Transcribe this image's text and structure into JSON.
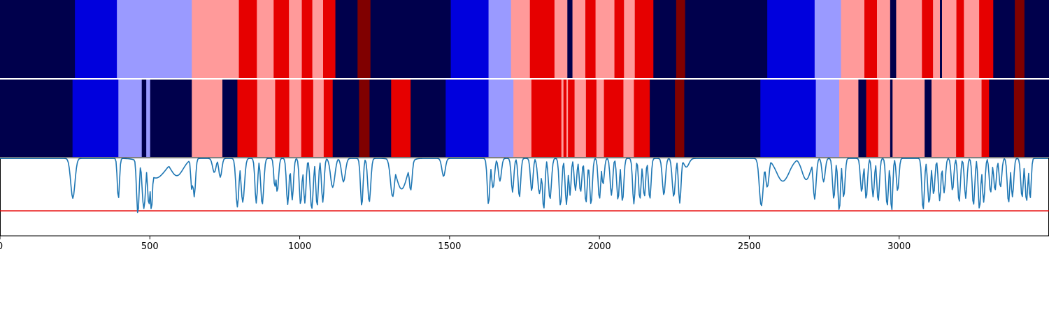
{
  "chart_data": {
    "type": "heatmap",
    "title": "",
    "xlabel": "",
    "ylabel": "",
    "xlim": [
      0,
      3500
    ],
    "xticks": [
      0,
      500,
      1000,
      1500,
      2000,
      2500,
      3000
    ],
    "grid": false,
    "colors": {
      "navy": "#00004c",
      "blue": "#0000dd",
      "lightblue": "#9a9aff",
      "pink": "#ff9a9a",
      "red": "#e60000",
      "darkred": "#800000",
      "line": "#1f77b4",
      "threshold": "#e60000"
    },
    "tracks": [
      {
        "segments": [
          [
            0,
            250,
            "navy"
          ],
          [
            250,
            390,
            "blue"
          ],
          [
            390,
            640,
            "lightblue"
          ],
          [
            640,
            797,
            "pink"
          ],
          [
            797,
            857,
            "red"
          ],
          [
            857,
            913,
            "pink"
          ],
          [
            913,
            964,
            "red"
          ],
          [
            964,
            1007,
            "pink"
          ],
          [
            1007,
            1042,
            "red"
          ],
          [
            1042,
            1078,
            "pink"
          ],
          [
            1078,
            1119,
            "red"
          ],
          [
            1119,
            1193,
            "navy"
          ],
          [
            1193,
            1236,
            "darkred"
          ],
          [
            1236,
            1504,
            "navy"
          ],
          [
            1504,
            1630,
            "blue"
          ],
          [
            1630,
            1705,
            "lightblue"
          ],
          [
            1705,
            1768,
            "pink"
          ],
          [
            1768,
            1850,
            "red"
          ],
          [
            1850,
            1893,
            "pink"
          ],
          [
            1893,
            1910,
            "navy"
          ],
          [
            1910,
            1953,
            "pink"
          ],
          [
            1953,
            1987,
            "red"
          ],
          [
            1987,
            2050,
            "pink"
          ],
          [
            2050,
            2082,
            "red"
          ],
          [
            2082,
            2118,
            "pink"
          ],
          [
            2118,
            2180,
            "red"
          ],
          [
            2180,
            2256,
            "navy"
          ],
          [
            2256,
            2286,
            "darkred"
          ],
          [
            2286,
            2560,
            "navy"
          ],
          [
            2560,
            2718,
            "blue"
          ],
          [
            2718,
            2806,
            "lightblue"
          ],
          [
            2806,
            2884,
            "pink"
          ],
          [
            2884,
            2926,
            "red"
          ],
          [
            2926,
            2970,
            "pink"
          ],
          [
            2970,
            2990,
            "navy"
          ],
          [
            2990,
            3076,
            "pink"
          ],
          [
            3076,
            3113,
            "red"
          ],
          [
            3113,
            3136,
            "pink"
          ],
          [
            3136,
            3143,
            "navy"
          ],
          [
            3143,
            3191,
            "pink"
          ],
          [
            3191,
            3216,
            "red"
          ],
          [
            3216,
            3267,
            "pink"
          ],
          [
            3267,
            3314,
            "red"
          ],
          [
            3314,
            3386,
            "navy"
          ],
          [
            3386,
            3418,
            "darkred"
          ],
          [
            3418,
            3500,
            "navy"
          ]
        ]
      },
      {
        "segments": [
          [
            0,
            242,
            "navy"
          ],
          [
            242,
            395,
            "blue"
          ],
          [
            395,
            473,
            "lightblue"
          ],
          [
            473,
            488,
            "navy"
          ],
          [
            488,
            501,
            "lightblue"
          ],
          [
            501,
            640,
            "navy"
          ],
          [
            640,
            742,
            "pink"
          ],
          [
            742,
            792,
            "navy"
          ],
          [
            792,
            858,
            "red"
          ],
          [
            858,
            918,
            "pink"
          ],
          [
            918,
            965,
            "red"
          ],
          [
            965,
            1005,
            "pink"
          ],
          [
            1005,
            1045,
            "red"
          ],
          [
            1045,
            1080,
            "pink"
          ],
          [
            1080,
            1110,
            "red"
          ],
          [
            1110,
            1198,
            "navy"
          ],
          [
            1198,
            1233,
            "darkred"
          ],
          [
            1233,
            1305,
            "navy"
          ],
          [
            1305,
            1370,
            "red"
          ],
          [
            1370,
            1487,
            "navy"
          ],
          [
            1487,
            1630,
            "blue"
          ],
          [
            1630,
            1713,
            "lightblue"
          ],
          [
            1713,
            1773,
            "pink"
          ],
          [
            1773,
            1873,
            "red"
          ],
          [
            1873,
            1880,
            "pink"
          ],
          [
            1880,
            1890,
            "red"
          ],
          [
            1890,
            1895,
            "pink"
          ],
          [
            1895,
            1917,
            "red"
          ],
          [
            1917,
            1955,
            "pink"
          ],
          [
            1955,
            1990,
            "red"
          ],
          [
            1990,
            2015,
            "pink"
          ],
          [
            2015,
            2080,
            "red"
          ],
          [
            2080,
            2115,
            "pink"
          ],
          [
            2115,
            2168,
            "red"
          ],
          [
            2168,
            2252,
            "navy"
          ],
          [
            2252,
            2283,
            "darkred"
          ],
          [
            2283,
            2537,
            "navy"
          ],
          [
            2537,
            2722,
            "blue"
          ],
          [
            2722,
            2800,
            "lightblue"
          ],
          [
            2800,
            2864,
            "pink"
          ],
          [
            2864,
            2890,
            "navy"
          ],
          [
            2890,
            2930,
            "red"
          ],
          [
            2930,
            2970,
            "pink"
          ],
          [
            2970,
            2978,
            "navy"
          ],
          [
            2978,
            3085,
            "pink"
          ],
          [
            3085,
            3108,
            "navy"
          ],
          [
            3108,
            3190,
            "pink"
          ],
          [
            3190,
            3217,
            "red"
          ],
          [
            3217,
            3275,
            "pink"
          ],
          [
            3275,
            3300,
            "red"
          ],
          [
            3300,
            3383,
            "navy"
          ],
          [
            3383,
            3418,
            "darkred"
          ],
          [
            3418,
            3500,
            "navy"
          ]
        ]
      }
    ],
    "line_panel": {
      "ylim": [
        0,
        1
      ],
      "threshold": 0.32,
      "baseline": 0.99,
      "dips": [
        [
          243,
          0.48,
          10
        ],
        [
          395,
          0.47,
          5
        ],
        [
          460,
          0.28,
          6
        ],
        [
          480,
          0.35,
          8
        ],
        [
          497,
          0.4,
          7
        ],
        [
          505,
          0.33,
          6
        ],
        [
          520,
          0.74,
          45
        ],
        [
          590,
          0.77,
          30
        ],
        [
          640,
          0.58,
          5
        ],
        [
          648,
          0.5,
          6
        ],
        [
          715,
          0.81,
          8
        ],
        [
          735,
          0.75,
          7
        ],
        [
          792,
          0.37,
          7
        ],
        [
          810,
          0.43,
          8
        ],
        [
          855,
          0.42,
          6
        ],
        [
          875,
          0.4,
          7
        ],
        [
          917,
          0.62,
          5
        ],
        [
          925,
          0.56,
          6
        ],
        [
          960,
          0.4,
          6
        ],
        [
          975,
          0.46,
          6
        ],
        [
          1003,
          0.4,
          6
        ],
        [
          1017,
          0.42,
          6
        ],
        [
          1040,
          0.34,
          7
        ],
        [
          1058,
          0.38,
          6
        ],
        [
          1077,
          0.43,
          6
        ],
        [
          1110,
          0.62,
          10
        ],
        [
          1146,
          0.69,
          9
        ],
        [
          1207,
          0.38,
          6
        ],
        [
          1232,
          0.43,
          7
        ],
        [
          1310,
          0.5,
          10
        ],
        [
          1340,
          0.6,
          25
        ],
        [
          1370,
          0.58,
          7
        ],
        [
          1480,
          0.76,
          8
        ],
        [
          1630,
          0.4,
          6
        ],
        [
          1645,
          0.61,
          7
        ],
        [
          1668,
          0.7,
          7
        ],
        [
          1710,
          0.56,
          6
        ],
        [
          1733,
          0.49,
          6
        ],
        [
          1774,
          0.57,
          6
        ],
        [
          1800,
          0.54,
          8
        ],
        [
          1814,
          0.34,
          6
        ],
        [
          1835,
          0.47,
          7
        ],
        [
          1870,
          0.38,
          6
        ],
        [
          1890,
          0.4,
          6
        ],
        [
          1902,
          0.52,
          5
        ],
        [
          1920,
          0.58,
          6
        ],
        [
          1937,
          0.56,
          6
        ],
        [
          1955,
          0.42,
          6
        ],
        [
          1972,
          0.4,
          6
        ],
        [
          2000,
          0.47,
          6
        ],
        [
          2012,
          0.66,
          6
        ],
        [
          2040,
          0.52,
          6
        ],
        [
          2062,
          0.46,
          6
        ],
        [
          2077,
          0.44,
          6
        ],
        [
          2115,
          0.41,
          6
        ],
        [
          2135,
          0.47,
          6
        ],
        [
          2150,
          0.5,
          6
        ],
        [
          2168,
          0.47,
          6
        ],
        [
          2215,
          0.52,
          7
        ],
        [
          2248,
          0.5,
          7
        ],
        [
          2268,
          0.42,
          6
        ],
        [
          2290,
          0.88,
          12
        ],
        [
          2540,
          0.38,
          9
        ],
        [
          2560,
          0.62,
          8
        ],
        [
          2612,
          0.7,
          30
        ],
        [
          2690,
          0.72,
          20
        ],
        [
          2718,
          0.47,
          7
        ],
        [
          2748,
          0.69,
          7
        ],
        [
          2782,
          0.47,
          6
        ],
        [
          2800,
          0.32,
          6
        ],
        [
          2815,
          0.49,
          6
        ],
        [
          2875,
          0.56,
          6
        ],
        [
          2890,
          0.47,
          6
        ],
        [
          2913,
          0.5,
          6
        ],
        [
          2930,
          0.44,
          6
        ],
        [
          2960,
          0.38,
          6
        ],
        [
          2975,
          0.31,
          5
        ],
        [
          2995,
          0.57,
          6
        ],
        [
          3080,
          0.33,
          6
        ],
        [
          3100,
          0.42,
          7
        ],
        [
          3115,
          0.53,
          6
        ],
        [
          3135,
          0.45,
          6
        ],
        [
          3150,
          0.55,
          6
        ],
        [
          3178,
          0.58,
          6
        ],
        [
          3200,
          0.43,
          6
        ],
        [
          3222,
          0.48,
          6
        ],
        [
          3248,
          0.39,
          6
        ],
        [
          3268,
          0.34,
          6
        ],
        [
          3282,
          0.43,
          6
        ],
        [
          3305,
          0.55,
          6
        ],
        [
          3320,
          0.58,
          6
        ],
        [
          3338,
          0.62,
          6
        ],
        [
          3365,
          0.42,
          6
        ],
        [
          3378,
          0.5,
          6
        ],
        [
          3410,
          0.49,
          6
        ],
        [
          3425,
          0.44,
          6
        ],
        [
          3437,
          0.47,
          5
        ]
      ]
    }
  }
}
